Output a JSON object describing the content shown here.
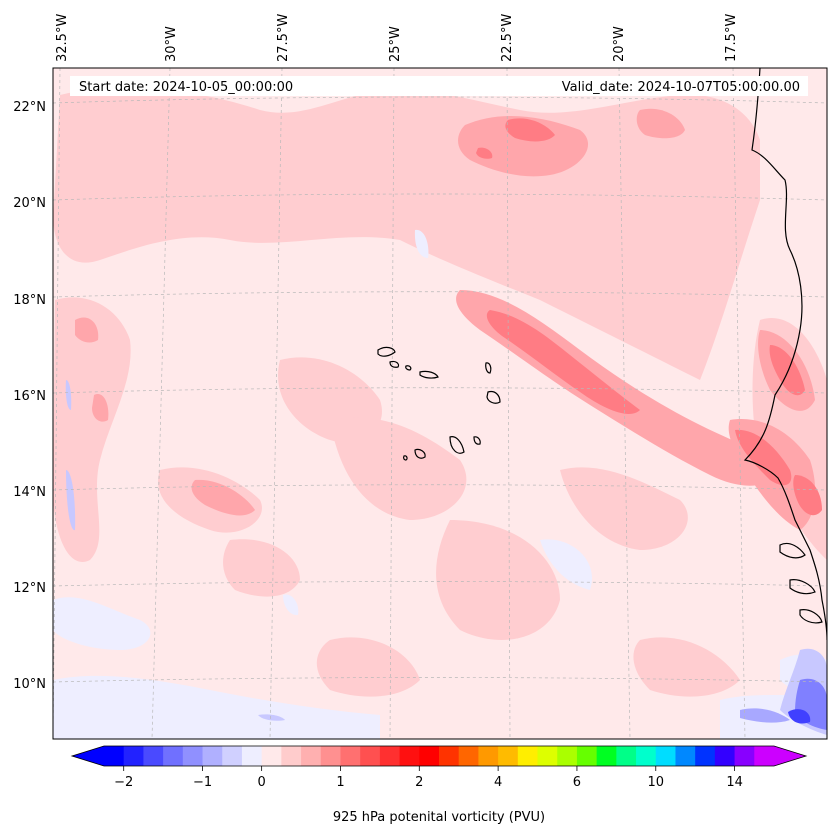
{
  "header": {
    "start_date": "Start date: 2024-10-05_00:00:00",
    "valid_date": "Valid_date: 2024-10-07T05:00:00.00"
  },
  "axes": {
    "lon_labels": [
      "32.5°W",
      "30°W",
      "27.5°W",
      "25°W",
      "22.5°W",
      "20°W",
      "17.5°W"
    ],
    "lat_labels": [
      "22°N",
      "20°N",
      "18°N",
      "16°N",
      "14°N",
      "12°N",
      "10°N"
    ]
  },
  "colorbar": {
    "label": "925 hPa potenital vorticity (PVU)",
    "tick_labels": [
      "−2",
      "−1",
      "0",
      "1",
      "2",
      "4",
      "6",
      "10",
      "14"
    ],
    "colors": [
      "#0000ff",
      "#2222ff",
      "#4a4aff",
      "#7070ff",
      "#9090ff",
      "#b0b0ff",
      "#d0d0ff",
      "#eeeeff",
      "#ffe9ea",
      "#ffcccc",
      "#ffb0b0",
      "#ff9090",
      "#ff7070",
      "#ff5050",
      "#ff3030",
      "#ff1010",
      "#ff0000",
      "#ff3300",
      "#ff6600",
      "#ff9900",
      "#ffbb00",
      "#ffee00",
      "#ddff00",
      "#aaff00",
      "#66ff00",
      "#00ff22",
      "#00ff88",
      "#00ffcc",
      "#00ddff",
      "#0088ff",
      "#0033ff",
      "#3300ff",
      "#8800ff",
      "#cc00ff"
    ],
    "min_color": "#0000ff",
    "max_color": "#cc00ff"
  },
  "map_colors": {
    "background": "#ffe9ea",
    "light_red": "#ffcdd0",
    "mid_red": "#ffa6ab",
    "strong_red": "#ff7c84",
    "light_blue": "#eeeeff",
    "mid_blue": "#c8c8ff",
    "deep_blue": "#4040ff",
    "coast": "#000000"
  }
}
